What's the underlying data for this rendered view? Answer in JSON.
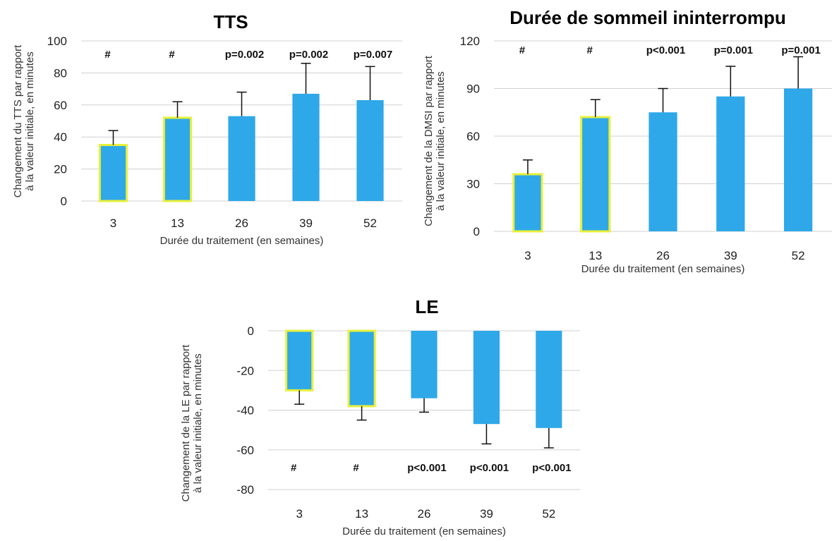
{
  "chart_data": [
    {
      "type": "bar",
      "title": "TTS",
      "xlabel": "Durée du traitement (en semaines)",
      "ylabel": [
        "Changement du TTS par rapport",
        "à la valeur initiale, en minutes"
      ],
      "categories": [
        "3",
        "13",
        "26",
        "39",
        "52"
      ],
      "values": [
        35,
        52,
        53,
        67,
        63
      ],
      "error_upper": [
        44,
        62,
        68,
        86,
        84
      ],
      "highlighted": [
        true,
        true,
        false,
        false,
        false
      ],
      "annotations": [
        "#",
        "#",
        "p=0.002",
        "p=0.002",
        "p=0.007"
      ],
      "ylim": [
        0,
        100
      ],
      "yticks": [
        "0",
        "20",
        "40",
        "60",
        "80",
        "100"
      ],
      "grid": true
    },
    {
      "type": "bar",
      "title": "Durée de sommeil ininterrompu",
      "xlabel": "Durée du traitement (en semaines)",
      "ylabel": [
        "Changement de la DMSI par rapport",
        "à la valeur initiale, en minutes"
      ],
      "categories": [
        "3",
        "13",
        "26",
        "39",
        "52"
      ],
      "values": [
        36,
        72,
        75,
        85,
        90
      ],
      "error_upper": [
        45,
        83,
        90,
        104,
        110
      ],
      "highlighted": [
        true,
        true,
        false,
        false,
        false
      ],
      "annotations": [
        "#",
        "#",
        "p<0.001",
        "p=0.001",
        "p=0.001"
      ],
      "ylim": [
        0,
        120
      ],
      "yticks": [
        "0",
        "30",
        "60",
        "90",
        "120"
      ],
      "grid": true
    },
    {
      "type": "bar",
      "title": "LE",
      "xlabel": "Durée du traitement (en semaines)",
      "ylabel": [
        "Changement de la LE par rapport",
        "à la valeur initiale, en minutes"
      ],
      "categories": [
        "3",
        "13",
        "26",
        "39",
        "52"
      ],
      "values": [
        -30,
        -38,
        -34,
        -47,
        -49
      ],
      "error_lower": [
        -37,
        -45,
        -41,
        -57,
        -59
      ],
      "highlighted": [
        true,
        true,
        false,
        false,
        false
      ],
      "annotations": [
        "#",
        "#",
        "p<0.001",
        "p<0.001",
        "p<0.001"
      ],
      "ylim": [
        -80,
        0
      ],
      "yticks": [
        "0",
        "-20",
        "-40",
        "-60",
        "-80"
      ],
      "grid": true
    }
  ],
  "colors": {
    "bar": "#2ea8e8",
    "highlight_border": "#e8f03a",
    "error_bar": "#111111",
    "grid": "#d0d0d0",
    "axis_text": "#333333"
  }
}
